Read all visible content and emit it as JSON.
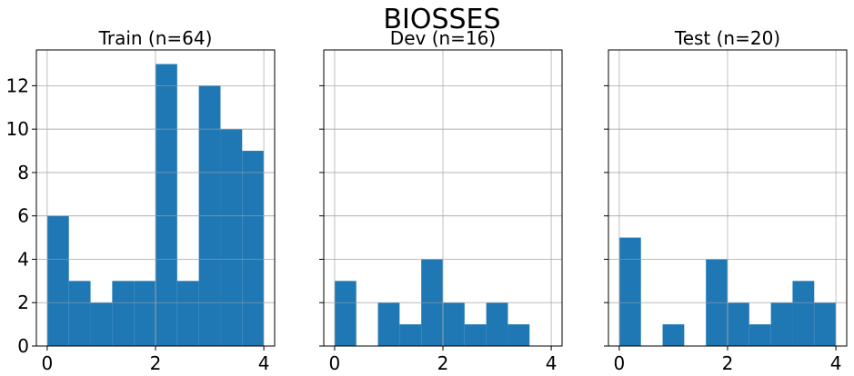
{
  "figure": {
    "title": "BIOSSES"
  },
  "chart_data": [
    {
      "type": "bar",
      "title": "Train (n=64)",
      "xlim": [
        -0.2,
        4.2
      ],
      "ylim": [
        0,
        13.65
      ],
      "xticks": [
        "0",
        "2",
        "4"
      ],
      "yticks": [
        "0",
        "2",
        "4",
        "6",
        "8",
        "10",
        "12"
      ],
      "grid": true,
      "bin_edges": [
        0,
        0.4,
        0.8,
        1.2,
        1.6,
        2.0,
        2.4,
        2.8,
        3.2,
        3.6,
        4.0
      ],
      "values": [
        6,
        3,
        2,
        3,
        3,
        13,
        3,
        12,
        10,
        9
      ],
      "bar_color": "#1f77b4"
    },
    {
      "type": "bar",
      "title": "Dev (n=16)",
      "xlim": [
        -0.2,
        4.2
      ],
      "ylim": [
        0,
        13.65
      ],
      "xticks": [
        "0",
        "2",
        "4"
      ],
      "yticks": [],
      "grid": true,
      "bin_edges": [
        0,
        0.4,
        0.8,
        1.2,
        1.6,
        2.0,
        2.4,
        2.8,
        3.2,
        3.6,
        4.0
      ],
      "values": [
        3,
        0,
        2,
        1,
        4,
        2,
        1,
        2,
        1,
        0
      ],
      "bar_color": "#1f77b4"
    },
    {
      "type": "bar",
      "title": "Test (n=20)",
      "xlim": [
        -0.2,
        4.2
      ],
      "ylim": [
        0,
        13.65
      ],
      "xticks": [
        "0",
        "2",
        "4"
      ],
      "yticks": [],
      "grid": true,
      "bin_edges": [
        0,
        0.4,
        0.8,
        1.2,
        1.6,
        2.0,
        2.4,
        2.8,
        3.2,
        3.6,
        4.0
      ],
      "values": [
        5,
        0,
        1,
        0,
        4,
        2,
        1,
        2,
        3,
        2
      ],
      "bar_color": "#1f77b4"
    }
  ]
}
